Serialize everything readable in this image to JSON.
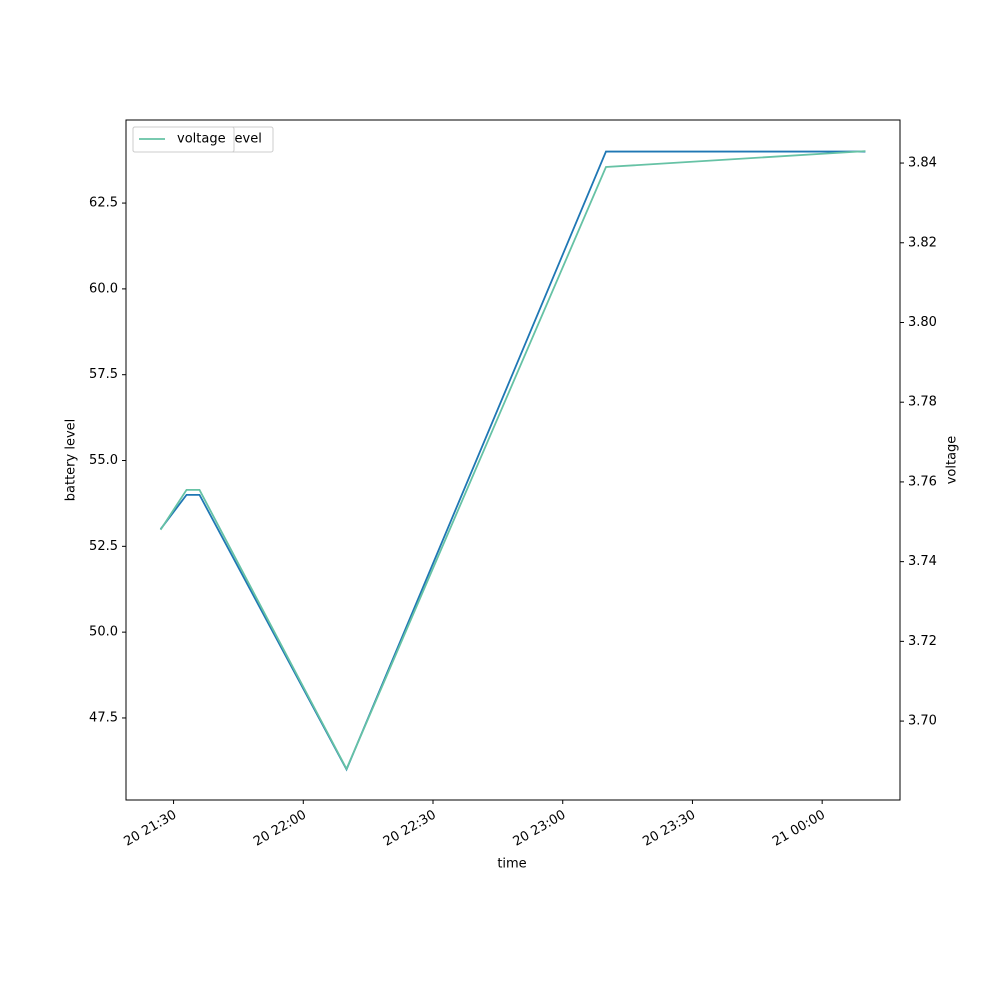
{
  "chart_data": {
    "type": "line",
    "xlabel": "time",
    "ylabel": "battery level",
    "y2label": "voltage",
    "x": [
      "20 21:27",
      "20 21:33",
      "20 21:36",
      "20 22:10",
      "20 23:10",
      "21 00:10"
    ],
    "xlim": [
      "20 21:19",
      "21 00:18"
    ],
    "xticks": [
      "20 21:30",
      "20 22:00",
      "20 22:30",
      "20 23:00",
      "20 23:30",
      "21 00:00"
    ],
    "ylim": [
      45.11,
      64.92
    ],
    "yticks": [
      47.5,
      {
        "value": 50,
        "label": "50.0"
      },
      52.5,
      {
        "value": 55,
        "label": "55.0"
      },
      57.5,
      {
        "value": 60,
        "label": "60.0"
      },
      62.5
    ],
    "y2lim": [
      3.6802,
      3.8508
    ],
    "y2ticks": [
      {
        "value": 3.7,
        "label": "3.70"
      },
      3.72,
      3.74,
      3.76,
      3.78,
      {
        "value": 3.8,
        "label": "3.80"
      },
      3.82,
      3.84
    ],
    "legend": "upper left",
    "series": [
      {
        "name": "battery_level",
        "color": "#1f77b4",
        "values": [
          53,
          54,
          54,
          46,
          64,
          64
        ]
      },
      {
        "name": "voltage",
        "color": "#66c2a5",
        "axis": "y2",
        "values": [
          3.748,
          3.758,
          3.758,
          3.688,
          3.839,
          3.843
        ]
      }
    ]
  }
}
